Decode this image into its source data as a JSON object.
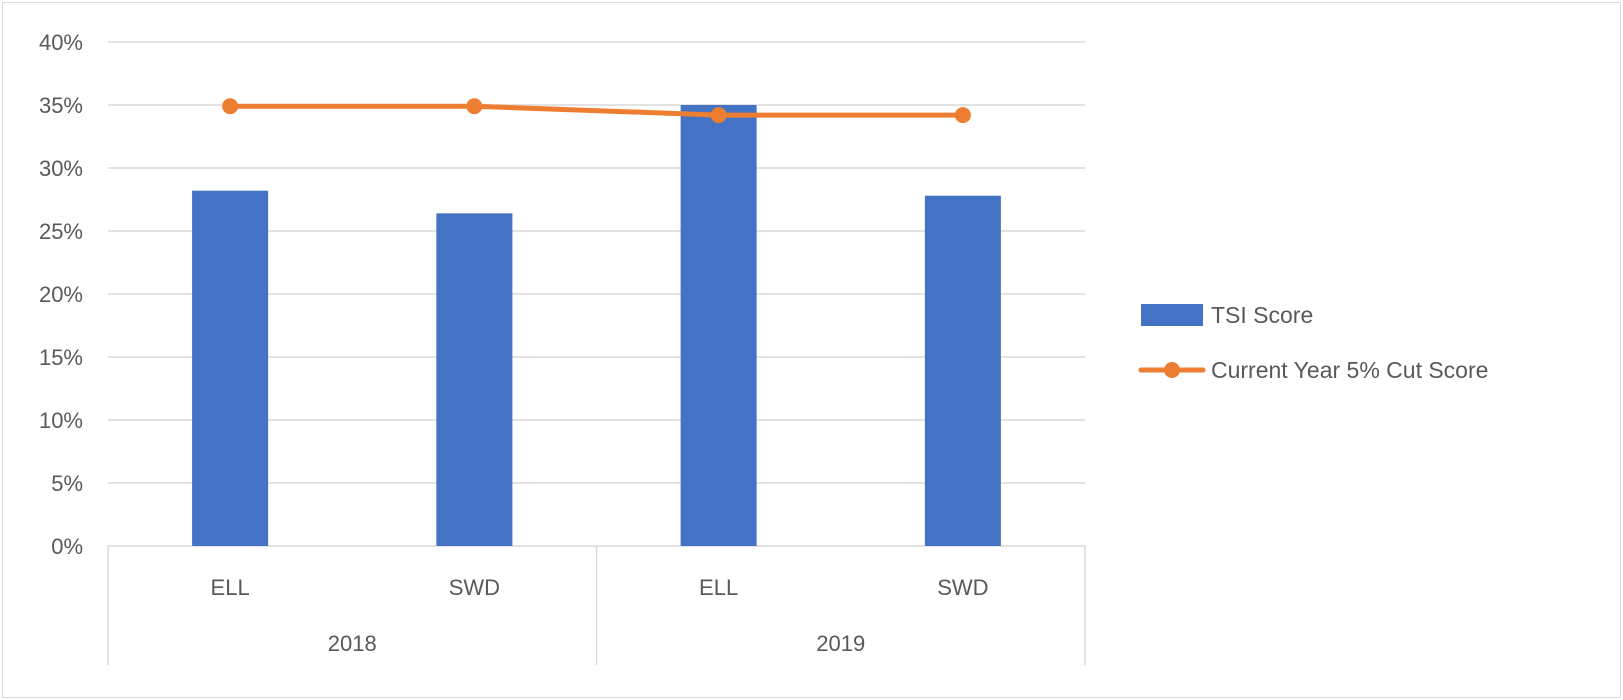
{
  "chart_data": {
    "type": "bar",
    "title": "",
    "xlabel": "",
    "ylabel": "",
    "ylim": [
      0,
      0.4
    ],
    "yticks": [
      0,
      0.05,
      0.1,
      0.15,
      0.2,
      0.25,
      0.3,
      0.35,
      0.4
    ],
    "ytick_labels": [
      "0%",
      "5%",
      "10%",
      "15%",
      "20%",
      "25%",
      "30%",
      "35%",
      "40%"
    ],
    "grid": true,
    "legend_position": "right",
    "categories": [
      "ELL",
      "SWD",
      "ELL",
      "SWD"
    ],
    "groups": [
      {
        "label": "2018",
        "span": 2
      },
      {
        "label": "2019",
        "span": 2
      }
    ],
    "series": [
      {
        "name": "TSI Score",
        "type": "bar",
        "color": "#4472C4",
        "values": [
          0.282,
          0.264,
          0.35,
          0.278
        ]
      },
      {
        "name": "Current Year 5% Cut Score",
        "type": "line",
        "color": "#ED7D31",
        "values": [
          0.349,
          0.349,
          0.342,
          0.342
        ]
      }
    ]
  }
}
